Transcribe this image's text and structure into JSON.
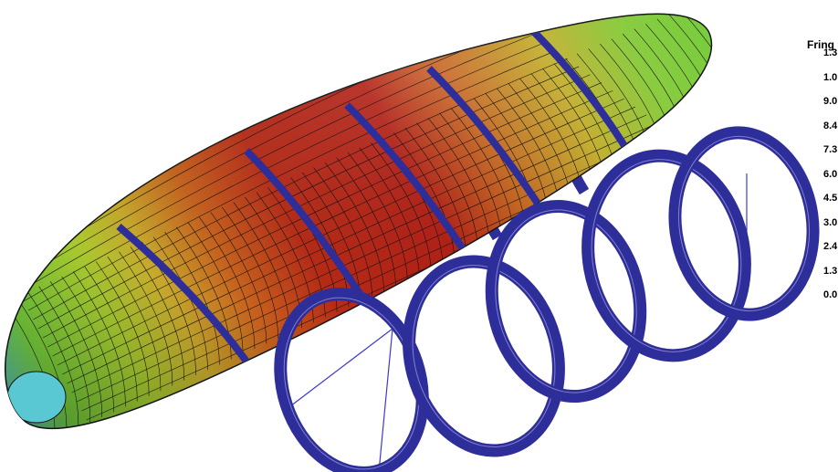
{
  "legend": {
    "title": "Fring",
    "values": [
      "1.3",
      "1.0",
      "9.0",
      "8.4",
      "7.3",
      "6.0",
      "4.5",
      "3.0",
      "2.4",
      "1.3",
      "0.0"
    ]
  },
  "colors": {
    "background": "#ffffff",
    "fringe_high": "#b41e14",
    "fringe_mid_high": "#c8641e",
    "fringe_mid": "#d2b428",
    "fringe_low": "#78d23c",
    "fringe_lowest": "#5ac8b4",
    "rings": "#2e2e9a",
    "mesh": "#141414"
  }
}
